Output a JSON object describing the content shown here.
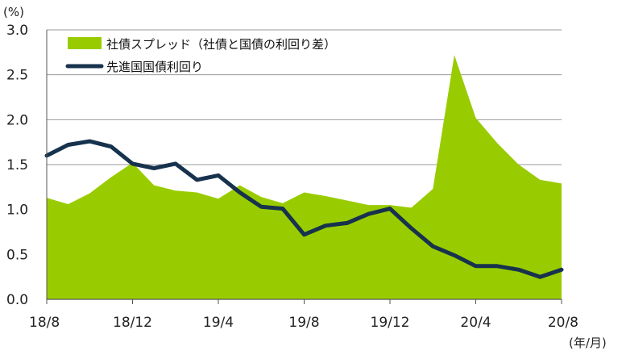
{
  "chart_data": {
    "type": "area",
    "y_unit_label": "(%)",
    "x_unit_label": "(年/月)",
    "ylim": [
      0.0,
      3.0
    ],
    "y_ticks": [
      "0.0",
      "0.5",
      "1.0",
      "1.5",
      "2.0",
      "2.5",
      "3.0"
    ],
    "x_tick_labels": [
      "18/8",
      "18/12",
      "19/4",
      "19/8",
      "19/12",
      "20/4",
      "20/8"
    ],
    "x_tick_indices": [
      0,
      4,
      8,
      12,
      16,
      20,
      24
    ],
    "grid": true,
    "legend_position": "top-left",
    "series": [
      {
        "name": "社債スプレッド（社債と国債の利回り差）",
        "kind": "area",
        "color": "#99cc00",
        "values": [
          1.13,
          1.06,
          1.18,
          1.36,
          1.52,
          1.27,
          1.21,
          1.19,
          1.12,
          1.27,
          1.14,
          1.07,
          1.19,
          1.15,
          1.1,
          1.05,
          1.05,
          1.02,
          1.23,
          2.72,
          2.02,
          1.74,
          1.5,
          1.33,
          1.29
        ]
      },
      {
        "name": "先進国国債利回り",
        "kind": "line",
        "color": "#17324d",
        "values": [
          1.6,
          1.72,
          1.76,
          1.7,
          1.51,
          1.46,
          1.51,
          1.33,
          1.38,
          1.19,
          1.03,
          1.01,
          0.72,
          0.82,
          0.85,
          0.95,
          1.01,
          0.79,
          0.59,
          0.49,
          0.37,
          0.37,
          0.33,
          0.25,
          0.33
        ]
      }
    ]
  }
}
